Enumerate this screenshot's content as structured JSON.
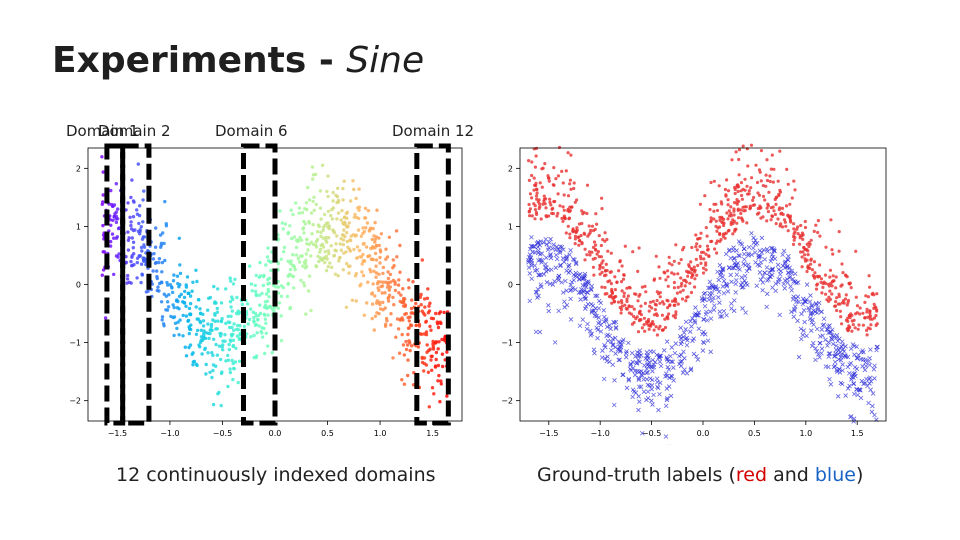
{
  "slide": {
    "title_main": "Experiments - ",
    "title_italic": "Sine",
    "domain_labels": [
      "Domain 1",
      "Domain 2",
      "Domain 6",
      "Domain 12"
    ],
    "caption_left": "12 continuously indexed domains",
    "caption_right_prefix": "Ground-truth labels (",
    "caption_right_red": "red",
    "caption_right_and": " and ",
    "caption_right_blue": "blue",
    "caption_right_suffix": ")"
  },
  "chart_data": [
    {
      "type": "scatter",
      "title": "",
      "xlabel": "",
      "ylabel": "",
      "xlim": [
        -1.78,
        1.78
      ],
      "ylim": [
        -2.35,
        2.35
      ],
      "xticks": [
        -1.5,
        -1.0,
        -0.5,
        0.0,
        0.5,
        1.0,
        1.5
      ],
      "xtick_labels": [
        "−1.5",
        "−1.0",
        "−0.5",
        "0.0",
        "0.5",
        "1.0",
        "1.5"
      ],
      "yticks": [
        2,
        1,
        0,
        -1,
        -2
      ],
      "ytick_labels": [
        "2",
        "1",
        "0",
        "−1",
        "−2"
      ],
      "grid": false,
      "colormap": "rainbow",
      "domains": 12,
      "x_range": [
        -1.65,
        1.65
      ],
      "curve": "y = sin(3x) ± noise",
      "highlighted_domains": [
        {
          "label": "Domain 1",
          "x_range": [
            -1.6,
            -1.45
          ]
        },
        {
          "label": "Domain 2",
          "x_range": [
            -1.45,
            -1.2
          ]
        },
        {
          "label": "Domain 6",
          "x_range": [
            -0.3,
            0.0
          ]
        },
        {
          "label": "Domain 12",
          "x_range": [
            1.35,
            1.65
          ]
        }
      ]
    },
    {
      "type": "scatter",
      "title": "",
      "xlabel": "",
      "ylabel": "",
      "xlim": [
        -1.78,
        1.78
      ],
      "ylim": [
        -2.35,
        2.35
      ],
      "xticks": [
        -1.5,
        -1.0,
        -0.5,
        0.0,
        0.5,
        1.0,
        1.5
      ],
      "xtick_labels": [
        "−1.5",
        "−1.0",
        "−0.5",
        "0.0",
        "0.5",
        "1.0",
        "1.5"
      ],
      "yticks": [
        2,
        1,
        0,
        -1,
        -2
      ],
      "ytick_labels": [
        "2",
        "1",
        "0",
        "−1",
        "−2"
      ],
      "grid": false,
      "series": [
        {
          "name": "",
          "color": "#e83030",
          "marker": "dot",
          "relation": "above sin(3x)"
        },
        {
          "name": "",
          "color": "#2b2bd8",
          "marker": "x",
          "relation": "below sin(3x)"
        }
      ]
    }
  ]
}
